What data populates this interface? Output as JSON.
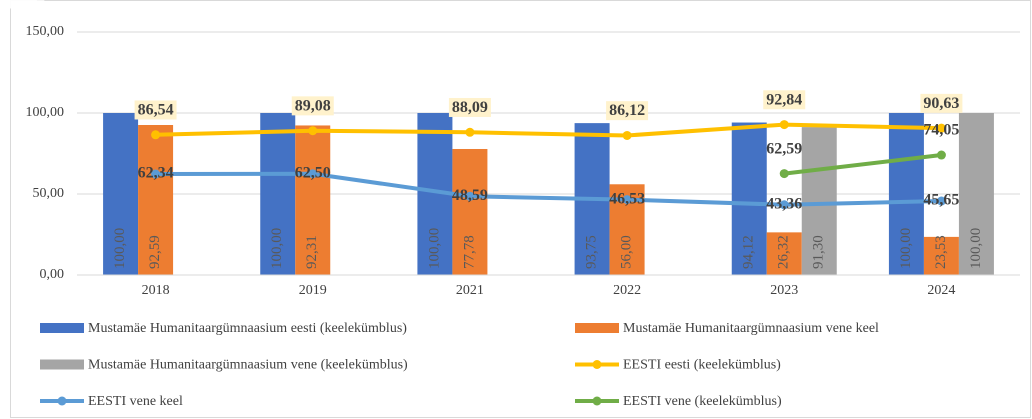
{
  "chart_data": {
    "type": "bar",
    "categories": [
      "2018",
      "2019",
      "2021",
      "2022",
      "2023",
      "2024"
    ],
    "ylim": [
      0,
      150
    ],
    "yticks": [
      {
        "value": 0,
        "label": "0,00"
      },
      {
        "value": 50,
        "label": "50,00"
      },
      {
        "value": 100,
        "label": "100,00"
      },
      {
        "value": 150,
        "label": "150,00"
      }
    ],
    "grid": true,
    "legend": "bottom",
    "series": [
      {
        "name": "Mustamäe Humanitaargümnaasium eesti (keelekümblus)",
        "type": "bar",
        "color": "#4472c4",
        "values": [
          100,
          100,
          100,
          93.75,
          94.12,
          100
        ],
        "value_labels": [
          "100,00",
          "100,00",
          "100,00",
          "93,75",
          "94,12",
          "100,00"
        ]
      },
      {
        "name": "Mustamäe Humanitaargümnaasium vene keel",
        "type": "bar",
        "color": "#ed7d31",
        "values": [
          92.59,
          92.31,
          77.78,
          56,
          26.32,
          23.53
        ],
        "value_labels": [
          "92,59",
          "92,31",
          "77,78",
          "56,00",
          "26,32",
          "23,53"
        ]
      },
      {
        "name": "Mustamäe Humanitaargümnaasium vene (keelekümblus)",
        "type": "bar",
        "color": "#a5a5a5",
        "values": [
          null,
          null,
          null,
          null,
          91.3,
          100
        ],
        "value_labels": [
          null,
          null,
          null,
          null,
          "91,30",
          "100,00"
        ]
      },
      {
        "name": "EESTI eesti (keelekümblus)",
        "type": "line",
        "color": "#ffc000",
        "values": [
          86.54,
          89.08,
          88.09,
          86.12,
          92.84,
          90.63
        ],
        "value_labels": [
          "86,54",
          "89,08",
          "88,09",
          "86,12",
          "92,84",
          "90,63"
        ]
      },
      {
        "name": "EESTI vene keel",
        "type": "line",
        "color": "#5b9bd5",
        "values": [
          62.34,
          62.5,
          48.59,
          46.53,
          43.36,
          45.65
        ],
        "value_labels": [
          "62,34",
          "62,50",
          "48,59",
          "46,53",
          "43,36",
          "45,65"
        ]
      },
      {
        "name": "EESTI vene (keelekümblus)",
        "type": "line",
        "color": "#70ad47",
        "values": [
          null,
          null,
          null,
          null,
          62.59,
          74.05
        ],
        "value_labels": [
          null,
          null,
          null,
          null,
          "62,59",
          "74,05"
        ]
      }
    ]
  }
}
